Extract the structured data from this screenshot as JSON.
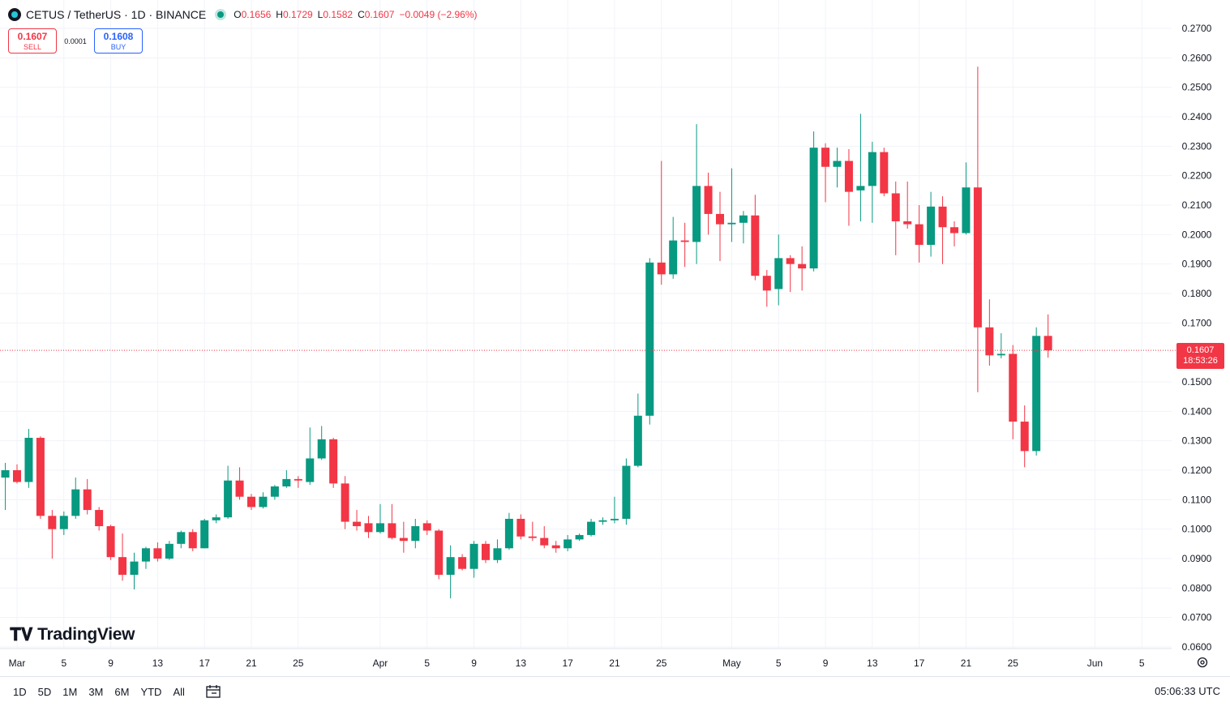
{
  "header": {
    "symbol": "CETUS / TetherUS · 1D · BINANCE",
    "ohlc": {
      "o_label": "O",
      "o": "0.1656",
      "h_label": "H",
      "h": "0.1729",
      "l_label": "L",
      "l": "0.1582",
      "c_label": "C",
      "c": "0.1607",
      "change": "−0.0049 (−2.96%)"
    }
  },
  "trade": {
    "sell_price": "0.1607",
    "sell_label": "SELL",
    "spread": "0.0001",
    "buy_price": "0.1608",
    "buy_label": "BUY"
  },
  "watermark": "TradingView",
  "price_tag": {
    "price": "0.1607",
    "countdown": "18:53:26"
  },
  "range_buttons": [
    "1D",
    "5D",
    "1M",
    "3M",
    "6M",
    "YTD",
    "All"
  ],
  "clock": "05:06:33 UTC",
  "colors": {
    "up": "#089981",
    "down": "#f23645",
    "grid": "#f0f3fa",
    "last_price_line": "#f23645"
  },
  "chart_data": {
    "type": "candlestick",
    "ylim": [
      0.055,
      0.275
    ],
    "y_ticks": [
      "0.2700",
      "0.2600",
      "0.2500",
      "0.2400",
      "0.2300",
      "0.2200",
      "0.2100",
      "0.2000",
      "0.1900",
      "0.1800",
      "0.1700",
      "0.1500",
      "0.1400",
      "0.1300",
      "0.1200",
      "0.1100",
      "0.1000",
      "0.0900",
      "0.0800",
      "0.0700",
      "0.0600"
    ],
    "x_ticks": [
      {
        "label": "Mar",
        "date": "2025-03-01"
      },
      {
        "label": "5",
        "date": "2025-03-05"
      },
      {
        "label": "9",
        "date": "2025-03-09"
      },
      {
        "label": "13",
        "date": "2025-03-13"
      },
      {
        "label": "17",
        "date": "2025-03-17"
      },
      {
        "label": "21",
        "date": "2025-03-21"
      },
      {
        "label": "25",
        "date": "2025-03-25"
      },
      {
        "label": "Apr",
        "date": "2025-04-01"
      },
      {
        "label": "5",
        "date": "2025-04-05"
      },
      {
        "label": "9",
        "date": "2025-04-09"
      },
      {
        "label": "13",
        "date": "2025-04-13"
      },
      {
        "label": "17",
        "date": "2025-04-17"
      },
      {
        "label": "21",
        "date": "2025-04-21"
      },
      {
        "label": "25",
        "date": "2025-04-25"
      },
      {
        "label": "May",
        "date": "2025-05-01"
      },
      {
        "label": "5",
        "date": "2025-05-05"
      },
      {
        "label": "9",
        "date": "2025-05-09"
      },
      {
        "label": "13",
        "date": "2025-05-13"
      },
      {
        "label": "17",
        "date": "2025-05-17"
      },
      {
        "label": "21",
        "date": "2025-05-21"
      },
      {
        "label": "25",
        "date": "2025-05-25"
      },
      {
        "label": "Jun",
        "date": "2025-06-01"
      },
      {
        "label": "5",
        "date": "2025-06-05"
      }
    ],
    "last_price": 0.1607,
    "candles": [
      {
        "date": "2025-02-28",
        "o": 0.1175,
        "h": 0.1225,
        "l": 0.1065,
        "c": 0.12
      },
      {
        "date": "2025-03-01",
        "o": 0.12,
        "h": 0.122,
        "l": 0.1155,
        "c": 0.116
      },
      {
        "date": "2025-03-02",
        "o": 0.116,
        "h": 0.134,
        "l": 0.114,
        "c": 0.131
      },
      {
        "date": "2025-03-03",
        "o": 0.131,
        "h": 0.1315,
        "l": 0.1035,
        "c": 0.1045
      },
      {
        "date": "2025-03-04",
        "o": 0.1045,
        "h": 0.1065,
        "l": 0.09,
        "c": 0.1
      },
      {
        "date": "2025-03-05",
        "o": 0.1,
        "h": 0.106,
        "l": 0.098,
        "c": 0.1045
      },
      {
        "date": "2025-03-06",
        "o": 0.1045,
        "h": 0.1175,
        "l": 0.1035,
        "c": 0.1135
      },
      {
        "date": "2025-03-07",
        "o": 0.1135,
        "h": 0.117,
        "l": 0.105,
        "c": 0.1065
      },
      {
        "date": "2025-03-08",
        "o": 0.1065,
        "h": 0.1075,
        "l": 0.0995,
        "c": 0.101
      },
      {
        "date": "2025-03-09",
        "o": 0.101,
        "h": 0.1015,
        "l": 0.0895,
        "c": 0.0905
      },
      {
        "date": "2025-03-10",
        "o": 0.0905,
        "h": 0.0985,
        "l": 0.0825,
        "c": 0.0845
      },
      {
        "date": "2025-03-11",
        "o": 0.0845,
        "h": 0.092,
        "l": 0.0795,
        "c": 0.089
      },
      {
        "date": "2025-03-12",
        "o": 0.089,
        "h": 0.094,
        "l": 0.0865,
        "c": 0.0935
      },
      {
        "date": "2025-03-13",
        "o": 0.0935,
        "h": 0.0955,
        "l": 0.089,
        "c": 0.09
      },
      {
        "date": "2025-03-14",
        "o": 0.09,
        "h": 0.096,
        "l": 0.0895,
        "c": 0.095
      },
      {
        "date": "2025-03-15",
        "o": 0.095,
        "h": 0.0995,
        "l": 0.0935,
        "c": 0.099
      },
      {
        "date": "2025-03-16",
        "o": 0.099,
        "h": 0.1,
        "l": 0.0925,
        "c": 0.0935
      },
      {
        "date": "2025-03-17",
        "o": 0.0935,
        "h": 0.1035,
        "l": 0.0935,
        "c": 0.103
      },
      {
        "date": "2025-03-18",
        "o": 0.103,
        "h": 0.105,
        "l": 0.102,
        "c": 0.104
      },
      {
        "date": "2025-03-19",
        "o": 0.104,
        "h": 0.1215,
        "l": 0.1035,
        "c": 0.1165
      },
      {
        "date": "2025-03-20",
        "o": 0.1165,
        "h": 0.121,
        "l": 0.11,
        "c": 0.111
      },
      {
        "date": "2025-03-21",
        "o": 0.111,
        "h": 0.112,
        "l": 0.1065,
        "c": 0.1075
      },
      {
        "date": "2025-03-22",
        "o": 0.1075,
        "h": 0.1125,
        "l": 0.107,
        "c": 0.111
      },
      {
        "date": "2025-03-23",
        "o": 0.111,
        "h": 0.115,
        "l": 0.11,
        "c": 0.1145
      },
      {
        "date": "2025-03-24",
        "o": 0.1145,
        "h": 0.12,
        "l": 0.114,
        "c": 0.117
      },
      {
        "date": "2025-03-25",
        "o": 0.117,
        "h": 0.118,
        "l": 0.114,
        "c": 0.1165
      },
      {
        "date": "2025-03-26",
        "o": 0.116,
        "h": 0.1345,
        "l": 0.115,
        "c": 0.124
      },
      {
        "date": "2025-03-27",
        "o": 0.124,
        "h": 0.135,
        "l": 0.1235,
        "c": 0.1305
      },
      {
        "date": "2025-03-28",
        "o": 0.1305,
        "h": 0.131,
        "l": 0.114,
        "c": 0.1155
      },
      {
        "date": "2025-03-29",
        "o": 0.1155,
        "h": 0.118,
        "l": 0.1,
        "c": 0.1025
      },
      {
        "date": "2025-03-30",
        "o": 0.1025,
        "h": 0.1065,
        "l": 0.0995,
        "c": 0.101
      },
      {
        "date": "2025-03-31",
        "o": 0.102,
        "h": 0.1045,
        "l": 0.097,
        "c": 0.099
      },
      {
        "date": "2025-04-01",
        "o": 0.099,
        "h": 0.1085,
        "l": 0.0985,
        "c": 0.102
      },
      {
        "date": "2025-04-02",
        "o": 0.102,
        "h": 0.1085,
        "l": 0.0965,
        "c": 0.097
      },
      {
        "date": "2025-04-03",
        "o": 0.097,
        "h": 0.1025,
        "l": 0.092,
        "c": 0.096
      },
      {
        "date": "2025-04-04",
        "o": 0.096,
        "h": 0.1035,
        "l": 0.0935,
        "c": 0.101
      },
      {
        "date": "2025-04-05",
        "o": 0.102,
        "h": 0.103,
        "l": 0.098,
        "c": 0.0995
      },
      {
        "date": "2025-04-06",
        "o": 0.0995,
        "h": 0.1,
        "l": 0.083,
        "c": 0.0845
      },
      {
        "date": "2025-04-07",
        "o": 0.0845,
        "h": 0.0945,
        "l": 0.0765,
        "c": 0.0905
      },
      {
        "date": "2025-04-08",
        "o": 0.0905,
        "h": 0.0915,
        "l": 0.086,
        "c": 0.0865
      },
      {
        "date": "2025-04-09",
        "o": 0.0865,
        "h": 0.096,
        "l": 0.0835,
        "c": 0.095
      },
      {
        "date": "2025-04-10",
        "o": 0.095,
        "h": 0.096,
        "l": 0.0885,
        "c": 0.0895
      },
      {
        "date": "2025-04-11",
        "o": 0.0895,
        "h": 0.0965,
        "l": 0.0885,
        "c": 0.0935
      },
      {
        "date": "2025-04-12",
        "o": 0.0935,
        "h": 0.1055,
        "l": 0.093,
        "c": 0.1035
      },
      {
        "date": "2025-04-13",
        "o": 0.1035,
        "h": 0.105,
        "l": 0.0965,
        "c": 0.0975
      },
      {
        "date": "2025-04-14",
        "o": 0.0975,
        "h": 0.1025,
        "l": 0.096,
        "c": 0.097
      },
      {
        "date": "2025-04-15",
        "o": 0.097,
        "h": 0.101,
        "l": 0.0935,
        "c": 0.0945
      },
      {
        "date": "2025-04-16",
        "o": 0.0945,
        "h": 0.096,
        "l": 0.092,
        "c": 0.0935
      },
      {
        "date": "2025-04-17",
        "o": 0.0935,
        "h": 0.098,
        "l": 0.0925,
        "c": 0.0965
      },
      {
        "date": "2025-04-18",
        "o": 0.0965,
        "h": 0.0985,
        "l": 0.096,
        "c": 0.098
      },
      {
        "date": "2025-04-19",
        "o": 0.098,
        "h": 0.1035,
        "l": 0.0975,
        "c": 0.1025
      },
      {
        "date": "2025-04-20",
        "o": 0.1025,
        "h": 0.104,
        "l": 0.1015,
        "c": 0.103
      },
      {
        "date": "2025-04-21",
        "o": 0.103,
        "h": 0.111,
        "l": 0.102,
        "c": 0.1035
      },
      {
        "date": "2025-04-22",
        "o": 0.1035,
        "h": 0.124,
        "l": 0.1015,
        "c": 0.1215
      },
      {
        "date": "2025-04-23",
        "o": 0.1215,
        "h": 0.146,
        "l": 0.121,
        "c": 0.1385
      },
      {
        "date": "2025-04-24",
        "o": 0.1385,
        "h": 0.192,
        "l": 0.1355,
        "c": 0.1905
      },
      {
        "date": "2025-04-25",
        "o": 0.1905,
        "h": 0.225,
        "l": 0.183,
        "c": 0.1865
      },
      {
        "date": "2025-04-26",
        "o": 0.1865,
        "h": 0.206,
        "l": 0.185,
        "c": 0.198
      },
      {
        "date": "2025-04-27",
        "o": 0.198,
        "h": 0.204,
        "l": 0.189,
        "c": 0.1975
      },
      {
        "date": "2025-04-28",
        "o": 0.1975,
        "h": 0.2375,
        "l": 0.19,
        "c": 0.2165
      },
      {
        "date": "2025-04-29",
        "o": 0.2165,
        "h": 0.221,
        "l": 0.2,
        "c": 0.207
      },
      {
        "date": "2025-04-30",
        "o": 0.207,
        "h": 0.2145,
        "l": 0.191,
        "c": 0.2035
      },
      {
        "date": "2025-05-01",
        "o": 0.2035,
        "h": 0.2225,
        "l": 0.1975,
        "c": 0.204
      },
      {
        "date": "2025-05-02",
        "o": 0.204,
        "h": 0.208,
        "l": 0.197,
        "c": 0.2065
      },
      {
        "date": "2025-05-03",
        "o": 0.2065,
        "h": 0.2135,
        "l": 0.1845,
        "c": 0.186
      },
      {
        "date": "2025-05-04",
        "o": 0.186,
        "h": 0.188,
        "l": 0.1755,
        "c": 0.181
      },
      {
        "date": "2025-05-05",
        "o": 0.1815,
        "h": 0.2,
        "l": 0.176,
        "c": 0.192
      },
      {
        "date": "2025-05-06",
        "o": 0.192,
        "h": 0.193,
        "l": 0.1805,
        "c": 0.19
      },
      {
        "date": "2025-05-07",
        "o": 0.19,
        "h": 0.196,
        "l": 0.181,
        "c": 0.1885
      },
      {
        "date": "2025-05-08",
        "o": 0.1885,
        "h": 0.235,
        "l": 0.1875,
        "c": 0.2295
      },
      {
        "date": "2025-05-09",
        "o": 0.2295,
        "h": 0.231,
        "l": 0.211,
        "c": 0.223
      },
      {
        "date": "2025-05-10",
        "o": 0.223,
        "h": 0.2295,
        "l": 0.216,
        "c": 0.225
      },
      {
        "date": "2025-05-11",
        "o": 0.225,
        "h": 0.229,
        "l": 0.203,
        "c": 0.2145
      },
      {
        "date": "2025-05-12",
        "o": 0.215,
        "h": 0.241,
        "l": 0.2045,
        "c": 0.2165
      },
      {
        "date": "2025-05-13",
        "o": 0.2165,
        "h": 0.2315,
        "l": 0.204,
        "c": 0.228
      },
      {
        "date": "2025-05-14",
        "o": 0.228,
        "h": 0.2295,
        "l": 0.213,
        "c": 0.214
      },
      {
        "date": "2025-05-15",
        "o": 0.214,
        "h": 0.218,
        "l": 0.193,
        "c": 0.2045
      },
      {
        "date": "2025-05-16",
        "o": 0.2045,
        "h": 0.218,
        "l": 0.202,
        "c": 0.2035
      },
      {
        "date": "2025-05-17",
        "o": 0.2035,
        "h": 0.21,
        "l": 0.1905,
        "c": 0.1965
      },
      {
        "date": "2025-05-18",
        "o": 0.1965,
        "h": 0.2145,
        "l": 0.1925,
        "c": 0.2095
      },
      {
        "date": "2025-05-19",
        "o": 0.2095,
        "h": 0.213,
        "l": 0.19,
        "c": 0.2025
      },
      {
        "date": "2025-05-20",
        "o": 0.2025,
        "h": 0.2045,
        "l": 0.196,
        "c": 0.2005
      },
      {
        "date": "2025-05-21",
        "o": 0.2005,
        "h": 0.2245,
        "l": 0.2,
        "c": 0.216
      },
      {
        "date": "2025-05-22",
        "o": 0.216,
        "h": 0.257,
        "l": 0.1465,
        "c": 0.1685
      },
      {
        "date": "2025-05-23",
        "o": 0.1685,
        "h": 0.178,
        "l": 0.1555,
        "c": 0.159
      },
      {
        "date": "2025-05-24",
        "o": 0.159,
        "h": 0.1665,
        "l": 0.158,
        "c": 0.1595
      },
      {
        "date": "2025-05-25",
        "o": 0.1595,
        "h": 0.1625,
        "l": 0.1305,
        "c": 0.1365
      },
      {
        "date": "2025-05-26",
        "o": 0.1365,
        "h": 0.142,
        "l": 0.121,
        "c": 0.1265
      },
      {
        "date": "2025-05-27",
        "o": 0.1265,
        "h": 0.1685,
        "l": 0.125,
        "c": 0.1656
      },
      {
        "date": "2025-05-28",
        "o": 0.1656,
        "h": 0.1729,
        "l": 0.1582,
        "c": 0.1607
      }
    ]
  }
}
